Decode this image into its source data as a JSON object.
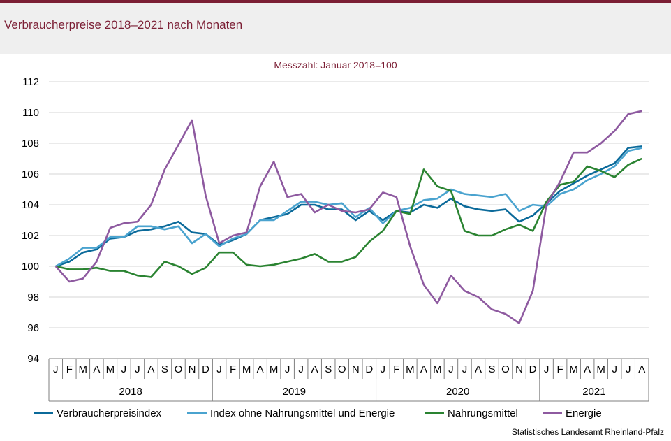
{
  "header": {
    "title": "Verbraucherpreise 2018–2021 nach Monaten"
  },
  "source": "Statistisches Landesamt Rheinland-Pfalz",
  "colors": {
    "accent": "#7b1e34"
  },
  "chart_data": {
    "type": "line",
    "subtitle": "Messzahl: Januar 2018=100",
    "ylim": [
      94,
      112
    ],
    "yticks": [
      94,
      96,
      98,
      100,
      102,
      104,
      106,
      108,
      110,
      112
    ],
    "grid": true,
    "legend_position": "bottom",
    "month_labels": [
      "J",
      "F",
      "M",
      "A",
      "M",
      "J",
      "J",
      "A",
      "S",
      "O",
      "N",
      "D",
      "J",
      "F",
      "M",
      "A",
      "M",
      "J",
      "J",
      "A",
      "S",
      "O",
      "N",
      "D",
      "J",
      "F",
      "M",
      "A",
      "M",
      "J",
      "J",
      "A",
      "S",
      "O",
      "N",
      "D",
      "J",
      "F",
      "M",
      "A",
      "M",
      "J",
      "J",
      "A"
    ],
    "years": [
      {
        "label": "2018",
        "months": 12
      },
      {
        "label": "2019",
        "months": 12
      },
      {
        "label": "2020",
        "months": 12
      },
      {
        "label": "2021",
        "months": 8
      }
    ],
    "series": [
      {
        "name": "Verbraucherpreisindex",
        "color": "#0b6a9a",
        "values": [
          100.0,
          100.3,
          100.9,
          101.1,
          101.8,
          101.9,
          102.3,
          102.4,
          102.6,
          102.9,
          102.2,
          102.1,
          101.4,
          101.7,
          102.1,
          103.0,
          103.2,
          103.4,
          104.0,
          104.0,
          103.7,
          103.7,
          103.0,
          103.6,
          103.0,
          103.6,
          103.5,
          104.0,
          103.8,
          104.4,
          103.9,
          103.7,
          103.6,
          103.7,
          102.9,
          103.3,
          104.1,
          104.9,
          105.4,
          105.9,
          106.3,
          106.7,
          107.7,
          107.8
        ]
      },
      {
        "name": "Index ohne Nahrungsmittel und Energie",
        "color": "#4aa3cf",
        "values": [
          100.0,
          100.5,
          101.2,
          101.2,
          101.9,
          101.9,
          102.6,
          102.6,
          102.4,
          102.6,
          101.5,
          102.1,
          101.3,
          101.8,
          102.1,
          103.0,
          103.0,
          103.6,
          104.2,
          104.2,
          104.0,
          104.1,
          103.2,
          103.8,
          102.8,
          103.6,
          103.8,
          104.3,
          104.4,
          105.0,
          104.7,
          104.6,
          104.5,
          104.7,
          103.6,
          104.0,
          103.9,
          104.7,
          105.0,
          105.6,
          106.0,
          106.5,
          107.5,
          107.7
        ]
      },
      {
        "name": "Nahrungsmittel",
        "color": "#2a8331",
        "values": [
          100.0,
          99.8,
          99.8,
          99.9,
          99.7,
          99.7,
          99.4,
          99.3,
          100.3,
          100.0,
          99.5,
          99.9,
          100.9,
          100.9,
          100.1,
          100.0,
          100.1,
          100.3,
          100.5,
          100.8,
          100.3,
          100.3,
          100.6,
          101.6,
          102.3,
          103.6,
          103.4,
          106.3,
          105.2,
          104.9,
          102.3,
          102.0,
          102.0,
          102.4,
          102.7,
          102.3,
          104.2,
          105.3,
          105.5,
          106.5,
          106.2,
          105.8,
          106.6,
          107.0
        ]
      },
      {
        "name": "Energie",
        "color": "#8e5aa0",
        "values": [
          100.0,
          99.0,
          99.2,
          100.3,
          102.5,
          102.8,
          102.9,
          104.0,
          106.3,
          107.9,
          109.5,
          104.6,
          101.5,
          102.0,
          102.2,
          105.2,
          106.8,
          104.5,
          104.7,
          103.5,
          104.0,
          103.6,
          103.5,
          103.7,
          104.8,
          104.5,
          101.3,
          98.8,
          97.6,
          99.4,
          98.4,
          98.0,
          97.2,
          96.9,
          96.3,
          98.4,
          104.0,
          105.5,
          107.4,
          107.4,
          108.0,
          108.8,
          109.9,
          110.1
        ]
      }
    ]
  }
}
